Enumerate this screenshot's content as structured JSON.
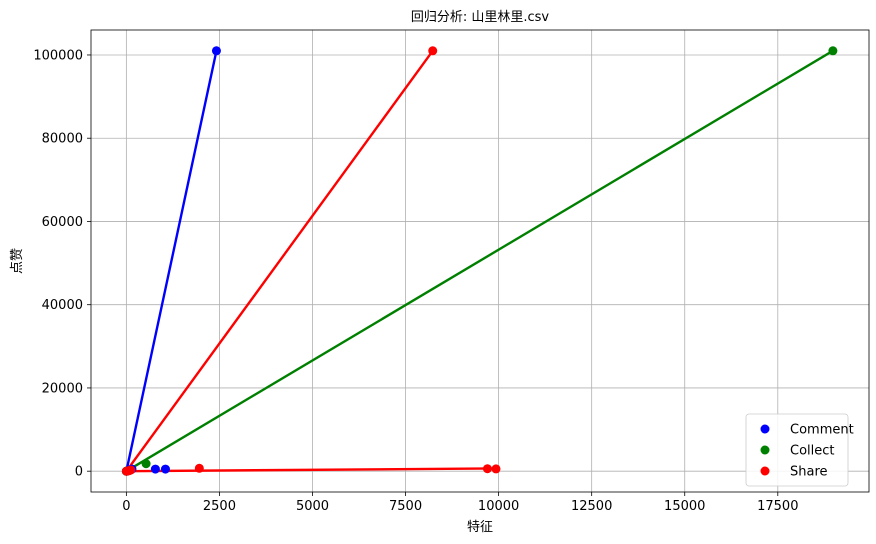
{
  "chart_data": {
    "type": "scatter",
    "title": "回归分析: 山里林里.csv",
    "xlabel": "特征",
    "ylabel": "点赞",
    "xlim": [
      -950,
      19950
    ],
    "ylim": [
      -5000,
      106000
    ],
    "xticks": [
      0,
      2500,
      5000,
      7500,
      10000,
      12500,
      15000,
      17500
    ],
    "yticks": [
      0,
      20000,
      40000,
      60000,
      80000,
      100000
    ],
    "grid": true,
    "legend_position": "lower-right",
    "series": [
      {
        "name": "Comment",
        "color": "#0000ff",
        "points": [
          {
            "x": 0,
            "y": 0
          },
          {
            "x": 5,
            "y": 10
          },
          {
            "x": 12,
            "y": 40
          },
          {
            "x": 20,
            "y": 60
          },
          {
            "x": 30,
            "y": 100
          },
          {
            "x": 60,
            "y": 200
          },
          {
            "x": 90,
            "y": 300
          },
          {
            "x": 150,
            "y": 500
          },
          {
            "x": 780,
            "y": 500
          },
          {
            "x": 1050,
            "y": 500
          },
          {
            "x": 2420,
            "y": 101000
          }
        ],
        "fit_lines": [
          {
            "x1": 0,
            "y1": 0,
            "x2": 2420,
            "y2": 101000
          }
        ]
      },
      {
        "name": "Collect",
        "color": "#008000",
        "points": [
          {
            "x": 0,
            "y": 0
          },
          {
            "x": 10,
            "y": 20
          },
          {
            "x": 40,
            "y": 80
          },
          {
            "x": 90,
            "y": 200
          },
          {
            "x": 530,
            "y": 1800
          },
          {
            "x": 18980,
            "y": 101000
          }
        ],
        "fit_lines": [
          {
            "x1": 0,
            "y1": 0,
            "x2": 18980,
            "y2": 101000
          }
        ]
      },
      {
        "name": "Share",
        "color": "#ff0000",
        "points": [
          {
            "x": 0,
            "y": 0
          },
          {
            "x": 15,
            "y": 30
          },
          {
            "x": 40,
            "y": 60
          },
          {
            "x": 80,
            "y": 150
          },
          {
            "x": 120,
            "y": 300
          },
          {
            "x": 1960,
            "y": 700
          },
          {
            "x": 9700,
            "y": 600
          },
          {
            "x": 9930,
            "y": 550
          },
          {
            "x": 8230,
            "y": 101000
          }
        ],
        "fit_lines": [
          {
            "x1": 0,
            "y1": 0,
            "x2": 8230,
            "y2": 101000
          },
          {
            "x1": 0,
            "y1": 0,
            "x2": 9930,
            "y2": 650
          }
        ]
      }
    ]
  }
}
